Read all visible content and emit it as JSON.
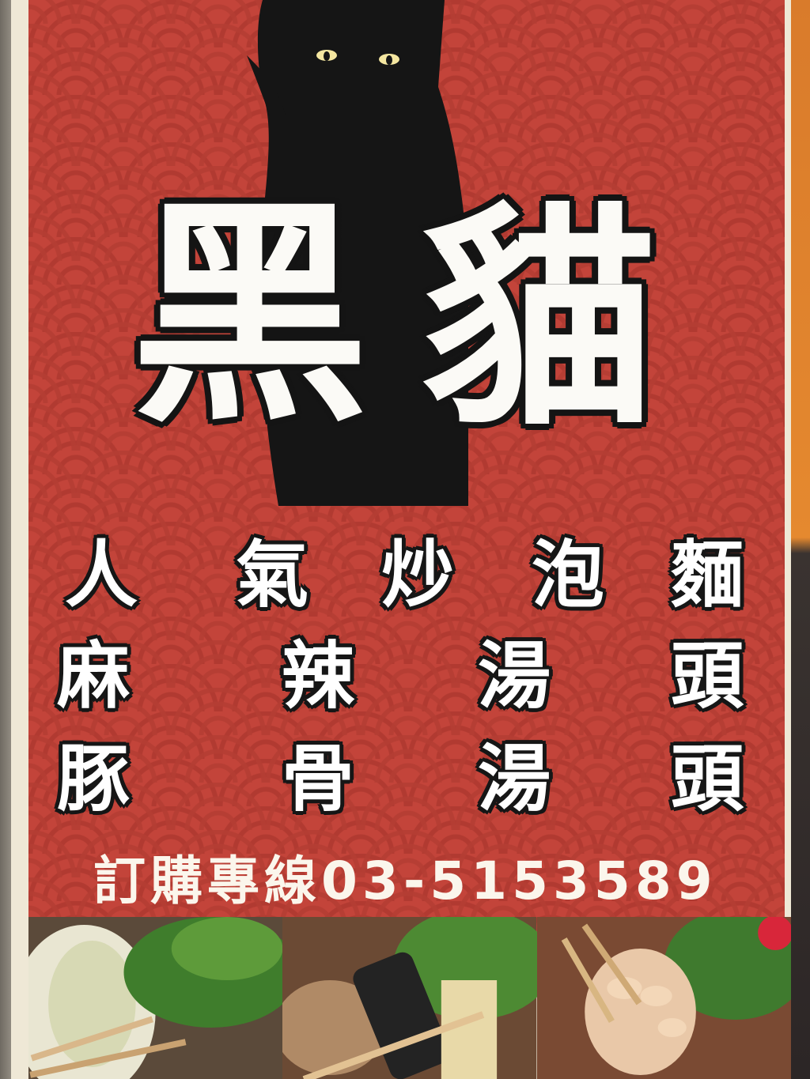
{
  "sign": {
    "title": [
      "黑",
      "貓"
    ],
    "menu_rows": [
      [
        "人",
        "氣",
        "炒",
        "泡",
        "麵"
      ],
      [
        "麻",
        "辣",
        "湯",
        "頭"
      ],
      [
        "豚",
        "骨",
        "湯",
        "頭"
      ]
    ],
    "phone": "訂購專線03-5153589"
  },
  "colors": {
    "sign_red": "#c3443a",
    "wave_red": "#b13a31",
    "cat_black": "#151515",
    "text_white": "#fbfaf6"
  },
  "icons": {
    "cat": "black-cat-silhouette"
  }
}
